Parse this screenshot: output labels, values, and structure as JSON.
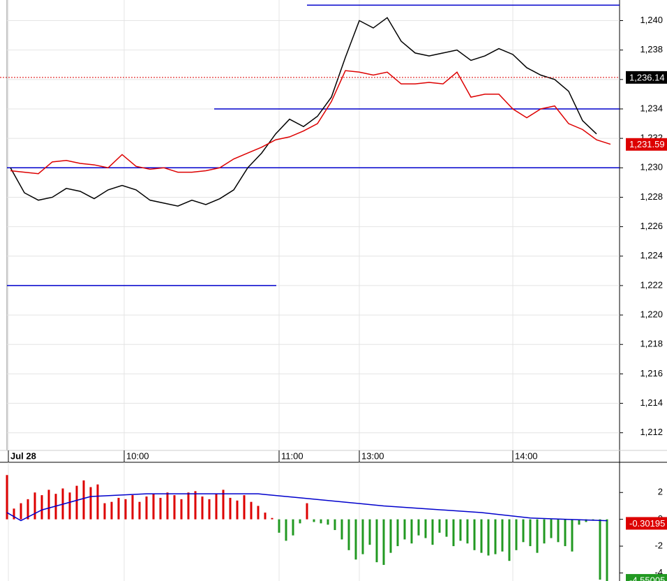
{
  "chart_data": [
    {
      "type": "line",
      "x": [
        1,
        5,
        9,
        13,
        17,
        21,
        25,
        29,
        33,
        37,
        41,
        45,
        49,
        53,
        57,
        61,
        65,
        69,
        73,
        77,
        81,
        85,
        89,
        93,
        97,
        101,
        105,
        109,
        113,
        117,
        121,
        125,
        129,
        133,
        137,
        141,
        145,
        149,
        153,
        157,
        161,
        165,
        169,
        173
      ],
      "xlim": [
        0,
        175.6
      ],
      "xticks": [
        {
          "value": 0.4,
          "label": "Jul 28"
        },
        {
          "value": 33.6,
          "label": "10:00"
        },
        {
          "value": 78,
          "label": "11:00"
        },
        {
          "value": 101,
          "label": "13:00"
        },
        {
          "value": 145,
          "label": "14:00"
        }
      ],
      "ylim": [
        1210.8,
        1241.4
      ],
      "yticks": [
        {
          "value": 1212,
          "label": "1,212"
        },
        {
          "value": 1214,
          "label": "1,214"
        },
        {
          "value": 1216,
          "label": "1,216"
        },
        {
          "value": 1218,
          "label": "1,218"
        },
        {
          "value": 1220,
          "label": "1,220"
        },
        {
          "value": 1222,
          "label": "1,222"
        },
        {
          "value": 1224,
          "label": "1,224"
        },
        {
          "value": 1226,
          "label": "1,226"
        },
        {
          "value": 1228,
          "label": "1,228"
        },
        {
          "value": 1230,
          "label": "1,230"
        },
        {
          "value": 1232,
          "label": "1,232"
        },
        {
          "value": 1234,
          "label": "1,234"
        },
        {
          "value": 1236,
          "label": "1,236"
        },
        {
          "value": 1238,
          "label": "1,238"
        },
        {
          "value": 1240,
          "label": "1,240"
        }
      ],
      "grid": true,
      "series": [
        {
          "color": "#000000",
          "values": [
            1230.0,
            1228.3,
            1227.8,
            1228.0,
            1228.6,
            1228.4,
            1227.9,
            1228.5,
            1228.8,
            1228.5,
            1227.8,
            1227.6,
            1227.4,
            1227.8,
            1227.5,
            1227.9,
            1228.5,
            1230.0,
            1231.0,
            1232.3,
            1233.3,
            1232.8,
            1233.5,
            1234.8,
            1237.5,
            1240.0,
            1239.5,
            1240.2,
            1238.6,
            1237.8,
            1237.6,
            1237.8,
            1238.0,
            1237.3,
            1237.6,
            1238.1,
            1237.7,
            1236.8,
            1236.3,
            1236.0,
            1235.2,
            1233.2,
            1232.3,
            null
          ]
        },
        {
          "color": "#dd0000",
          "values": [
            1229.8,
            1229.7,
            1229.6,
            1230.4,
            1230.5,
            1230.3,
            1230.2,
            1230.0,
            1230.9,
            1230.1,
            1229.9,
            1230.0,
            1229.7,
            1229.7,
            1229.8,
            1230.0,
            1230.6,
            1231.0,
            1231.4,
            1231.9,
            1232.1,
            1232.5,
            1233.0,
            1234.5,
            1236.6,
            1236.5,
            1236.3,
            1236.5,
            1235.7,
            1235.7,
            1235.8,
            1235.7,
            1236.5,
            1234.8,
            1235.0,
            1235.0,
            1234.0,
            1233.4,
            1234.0,
            1234.2,
            1233.0,
            1232.6,
            1231.9,
            1231.6
          ]
        }
      ],
      "levels": [
        {
          "value": 1241.05,
          "from": 86,
          "to": 175.6,
          "color": "#0000cc"
        },
        {
          "value": 1234,
          "from": 59.4,
          "to": 175.6,
          "color": "#0000cc"
        },
        {
          "value": 1230,
          "from": 0,
          "to": 175.6,
          "color": "#0000cc"
        },
        {
          "value": 1222,
          "from": 0,
          "to": 77.2,
          "color": "#0000cc"
        }
      ],
      "markers": [
        {
          "value": 1236.14,
          "label": "1,236.14",
          "color": "#000000",
          "dashed": true
        },
        {
          "value": 1231.59,
          "label": "1,231.59",
          "color": "#dd0000",
          "dashed": false
        }
      ]
    },
    {
      "type": "bar",
      "x": [
        0,
        2,
        4,
        6,
        8,
        10,
        12,
        14,
        16,
        18,
        20,
        22,
        24,
        26,
        28,
        30,
        32,
        34,
        36,
        38,
        40,
        42,
        44,
        46,
        48,
        50,
        52,
        54,
        56,
        58,
        60,
        62,
        64,
        66,
        68,
        70,
        72,
        74,
        76,
        78,
        80,
        82,
        84,
        86,
        88,
        90,
        92,
        94,
        96,
        98,
        100,
        102,
        104,
        106,
        108,
        110,
        112,
        114,
        116,
        118,
        120,
        122,
        124,
        126,
        128,
        130,
        132,
        134,
        136,
        138,
        140,
        142,
        144,
        146,
        148,
        150,
        152,
        154,
        156,
        158,
        160,
        162,
        164,
        166,
        168,
        170,
        172
      ],
      "xlim": [
        0,
        175.6
      ],
      "ylim": [
        -4.6,
        4.2
      ],
      "yticks": [
        -4,
        -2,
        0,
        2
      ],
      "series": [
        {
          "color": "#dd0000",
          "negative_color": "#229922",
          "values": [
            3.3,
            0.8,
            1.2,
            1.5,
            2.0,
            1.8,
            2.2,
            1.9,
            2.3,
            2.0,
            2.5,
            2.9,
            2.4,
            2.6,
            1.2,
            1.3,
            1.6,
            1.5,
            1.8,
            1.3,
            1.7,
            1.9,
            1.6,
            2.0,
            1.8,
            1.5,
            2.0,
            2.1,
            1.7,
            1.5,
            1.9,
            2.2,
            1.6,
            1.4,
            1.8,
            1.3,
            1.0,
            0.5,
            0.1,
            -1.0,
            -1.6,
            -1.2,
            -0.3,
            1.2,
            -0.2,
            -0.3,
            -0.4,
            -0.8,
            -1.5,
            -2.3,
            -3.0,
            -2.6,
            -1.9,
            -3.2,
            -3.4,
            -2.5,
            -2.0,
            -1.5,
            -1.8,
            -1.2,
            -1.4,
            -1.9,
            -1.0,
            -1.3,
            -2.0,
            -1.6,
            -1.8,
            -2.3,
            -2.5,
            -2.7,
            -2.6,
            -2.4,
            -3.1,
            -2.3,
            -1.7,
            -2.0,
            -2.5,
            -1.8,
            -1.4,
            -1.7,
            -2.0,
            -2.4,
            -0.4,
            -0.2,
            -0.1,
            -4.5,
            -4.6
          ]
        },
        {
          "type": "line",
          "color": "#0000cc",
          "x": [
            0,
            4,
            10,
            24,
            40,
            72,
            84,
            108,
            136,
            150,
            160,
            172
          ],
          "values": [
            0.5,
            -0.1,
            0.7,
            1.7,
            1.9,
            1.9,
            1.6,
            1.0,
            0.5,
            0.1,
            0.0,
            -0.1
          ]
        }
      ],
      "markers": [
        {
          "value": -0.30195,
          "color": "#dd0000"
        },
        {
          "value": -4.55005,
          "color": "#229922"
        }
      ]
    }
  ]
}
